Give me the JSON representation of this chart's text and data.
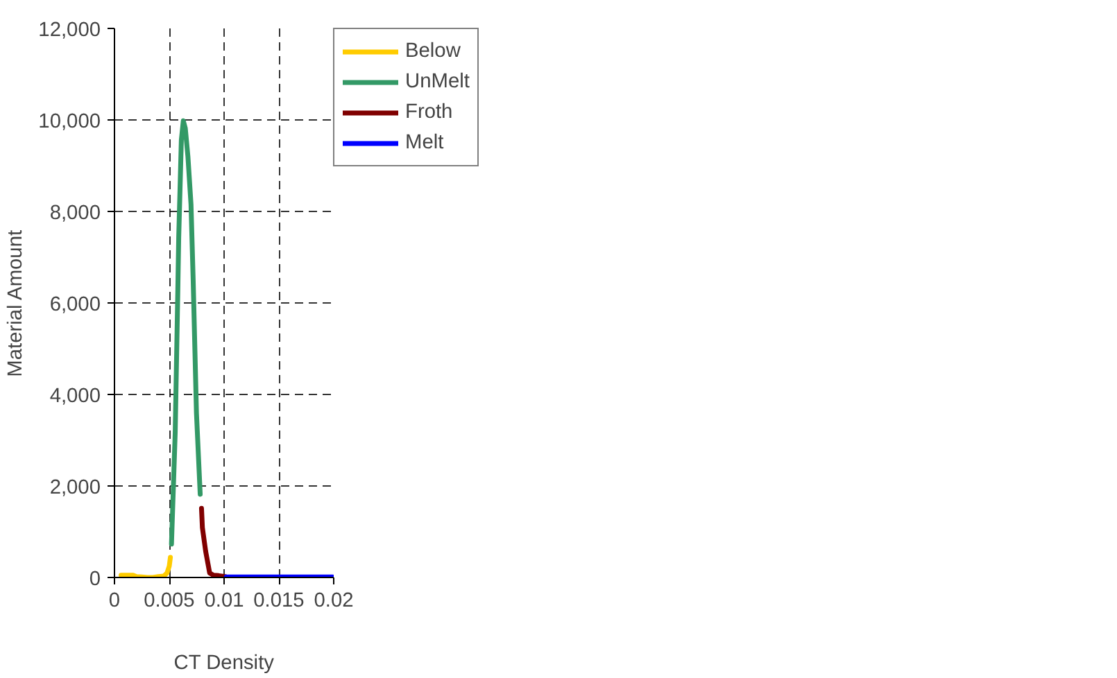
{
  "chart_data": {
    "type": "line",
    "xlabel": "CT Density",
    "ylabel": "Material Amount",
    "xlim": [
      0,
      0.02
    ],
    "ylim": [
      0,
      12000
    ],
    "xticks": [
      0,
      0.005,
      0.01,
      0.015,
      0.02
    ],
    "yticks": [
      {
        "value": 0,
        "label": "0"
      },
      {
        "value": 2000,
        "label": "2,000"
      },
      {
        "value": 4000,
        "label": "4,000"
      },
      {
        "value": 6000,
        "label": "6,000"
      },
      {
        "value": 8000,
        "label": "8,000"
      },
      {
        "value": 10000,
        "label": "10,000"
      },
      {
        "value": 12000,
        "label": "12,000"
      }
    ],
    "grid": true,
    "legend": "top right",
    "line_style": "solid",
    "marker": "none",
    "series": [
      {
        "name": "Below",
        "color": "#ffcc00",
        "x": [
          0.0006,
          0.0017,
          0.002,
          0.0025,
          0.003,
          0.0035,
          0.004,
          0.0045,
          0.0048,
          0.005,
          0.0051
        ],
        "values": [
          50,
          50,
          20,
          10,
          0,
          0,
          20,
          30,
          100,
          250,
          440
        ]
      },
      {
        "name": "UnMelt",
        "color": "#339966",
        "x": [
          0.0052,
          0.00554,
          0.00578,
          0.00586,
          0.0061,
          0.00628,
          0.00646,
          0.0067,
          0.00698,
          0.00718,
          0.00748,
          0.00782
        ],
        "values": [
          730,
          3170,
          6290,
          7430,
          9560,
          9980,
          9820,
          9200,
          8160,
          6490,
          3590,
          1820
        ]
      },
      {
        "name": "Froth",
        "color": "#800000",
        "x": [
          0.00794,
          0.00802,
          0.00832,
          0.00856,
          0.00868,
          0.00903,
          0.0095,
          0.0101
        ],
        "values": [
          1510,
          1090,
          570,
          260,
          100,
          50,
          40,
          20
        ]
      },
      {
        "name": "Melt",
        "color": "#0000ff",
        "x": [
          0.0102,
          0.012,
          0.014,
          0.016,
          0.018,
          0.0199
        ],
        "values": [
          10,
          10,
          10,
          10,
          10,
          10
        ]
      }
    ]
  }
}
